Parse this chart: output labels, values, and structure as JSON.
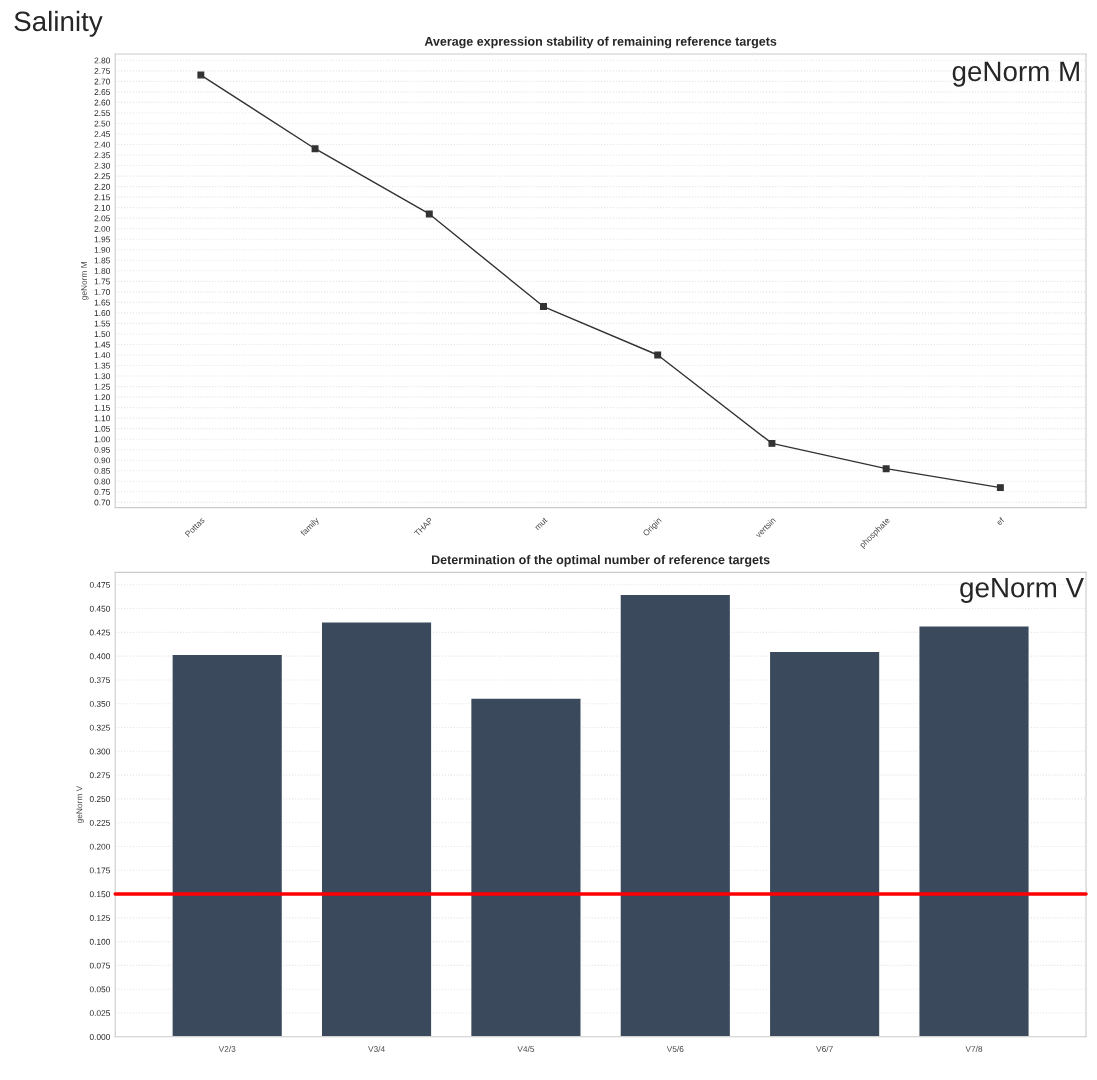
{
  "chart_data": [
    {
      "type": "line",
      "title": "Average expression stability of remaining reference targets",
      "ylabel": "geNorm M",
      "categories": [
        "Pottas",
        "family",
        "THAP",
        "mut",
        "Origin",
        "vertsin",
        "phosphate",
        "ef"
      ],
      "series": [
        {
          "color": "#333333",
          "values": [
            2.73,
            2.38,
            2.07,
            1.63,
            1.4,
            0.98,
            0.86,
            0.77
          ]
        }
      ],
      "marker": "square",
      "line_style": "solid",
      "ylim": [
        0.675,
        2.83
      ],
      "yticks": [
        {
          "value": 0.7,
          "label": "0.70"
        },
        {
          "value": 0.75,
          "label": "0.75"
        },
        {
          "value": 0.8,
          "label": "0.80"
        },
        {
          "value": 0.85,
          "label": "0.85"
        },
        {
          "value": 0.9,
          "label": "0.90"
        },
        {
          "value": 0.95,
          "label": "0.95"
        },
        {
          "value": 1.0,
          "label": "1.00"
        },
        {
          "value": 1.05,
          "label": "1.05"
        },
        {
          "value": 1.1,
          "label": "1.10"
        },
        {
          "value": 1.15,
          "label": "1.15"
        },
        {
          "value": 1.2,
          "label": "1.20"
        },
        {
          "value": 1.25,
          "label": "1.25"
        },
        {
          "value": 1.3,
          "label": "1.30"
        },
        {
          "value": 1.35,
          "label": "1.35"
        },
        {
          "value": 1.4,
          "label": "1.40"
        },
        {
          "value": 1.45,
          "label": "1.45"
        },
        {
          "value": 1.5,
          "label": "1.50"
        },
        {
          "value": 1.55,
          "label": "1.55"
        },
        {
          "value": 1.6,
          "label": "1.60"
        },
        {
          "value": 1.65,
          "label": "1.65"
        },
        {
          "value": 1.7,
          "label": "1.70"
        },
        {
          "value": 1.75,
          "label": "1.75"
        },
        {
          "value": 1.8,
          "label": "1.80"
        },
        {
          "value": 1.85,
          "label": "1.85"
        },
        {
          "value": 1.9,
          "label": "1.90"
        },
        {
          "value": 1.95,
          "label": "1.95"
        },
        {
          "value": 2.0,
          "label": "2.00"
        },
        {
          "value": 2.05,
          "label": "2.05"
        },
        {
          "value": 2.1,
          "label": "2.10"
        },
        {
          "value": 2.15,
          "label": "2.15"
        },
        {
          "value": 2.2,
          "label": "2.20"
        },
        {
          "value": 2.25,
          "label": "2.25"
        },
        {
          "value": 2.3,
          "label": "2.30"
        },
        {
          "value": 2.35,
          "label": "2.35"
        },
        {
          "value": 2.4,
          "label": "2.40"
        },
        {
          "value": 2.45,
          "label": "2.45"
        },
        {
          "value": 2.5,
          "label": "2.50"
        },
        {
          "value": 2.55,
          "label": "2.55"
        },
        {
          "value": 2.6,
          "label": "2.60"
        },
        {
          "value": 2.65,
          "label": "2.65"
        },
        {
          "value": 2.7,
          "label": "2.70"
        },
        {
          "value": 2.75,
          "label": "2.75"
        },
        {
          "value": 2.8,
          "label": "2.80"
        }
      ],
      "grid": "y",
      "annotations": [
        "Salinity",
        "geNorm M"
      ]
    },
    {
      "type": "bar",
      "title": "Determination of the optimal number of reference targets",
      "ylabel": "geNorm V",
      "categories": [
        "V2/3",
        "V3/4",
        "V4/5",
        "V5/6",
        "V6/7",
        "V7/8"
      ],
      "series": [
        {
          "color": "#3a4a5c",
          "values": [
            0.402,
            0.436,
            0.356,
            0.465,
            0.405,
            0.432
          ]
        }
      ],
      "ylim": [
        0,
        0.488
      ],
      "yticks": [
        {
          "value": 0,
          "label": "0.000"
        },
        {
          "value": 0.025,
          "label": "0.025"
        },
        {
          "value": 0.05,
          "label": "0.050"
        },
        {
          "value": 0.075,
          "label": "0.075"
        },
        {
          "value": 0.1,
          "label": "0.100"
        },
        {
          "value": 0.125,
          "label": "0.125"
        },
        {
          "value": 0.15,
          "label": "0.150"
        },
        {
          "value": 0.175,
          "label": "0.175"
        },
        {
          "value": 0.2,
          "label": "0.200"
        },
        {
          "value": 0.225,
          "label": "0.225"
        },
        {
          "value": 0.25,
          "label": "0.250"
        },
        {
          "value": 0.275,
          "label": "0.275"
        },
        {
          "value": 0.3,
          "label": "0.300"
        },
        {
          "value": 0.325,
          "label": "0.325"
        },
        {
          "value": 0.35,
          "label": "0.350"
        },
        {
          "value": 0.375,
          "label": "0.375"
        },
        {
          "value": 0.4,
          "label": "0.400"
        },
        {
          "value": 0.425,
          "label": "0.425"
        },
        {
          "value": 0.45,
          "label": "0.450"
        },
        {
          "value": 0.475,
          "label": "0.475"
        }
      ],
      "ref_lines": [
        {
          "axis": "y",
          "value": 0.15,
          "color": "#ff0000",
          "line_style": "solid"
        }
      ],
      "grid": "y",
      "annotations": [
        "geNorm V"
      ]
    }
  ]
}
